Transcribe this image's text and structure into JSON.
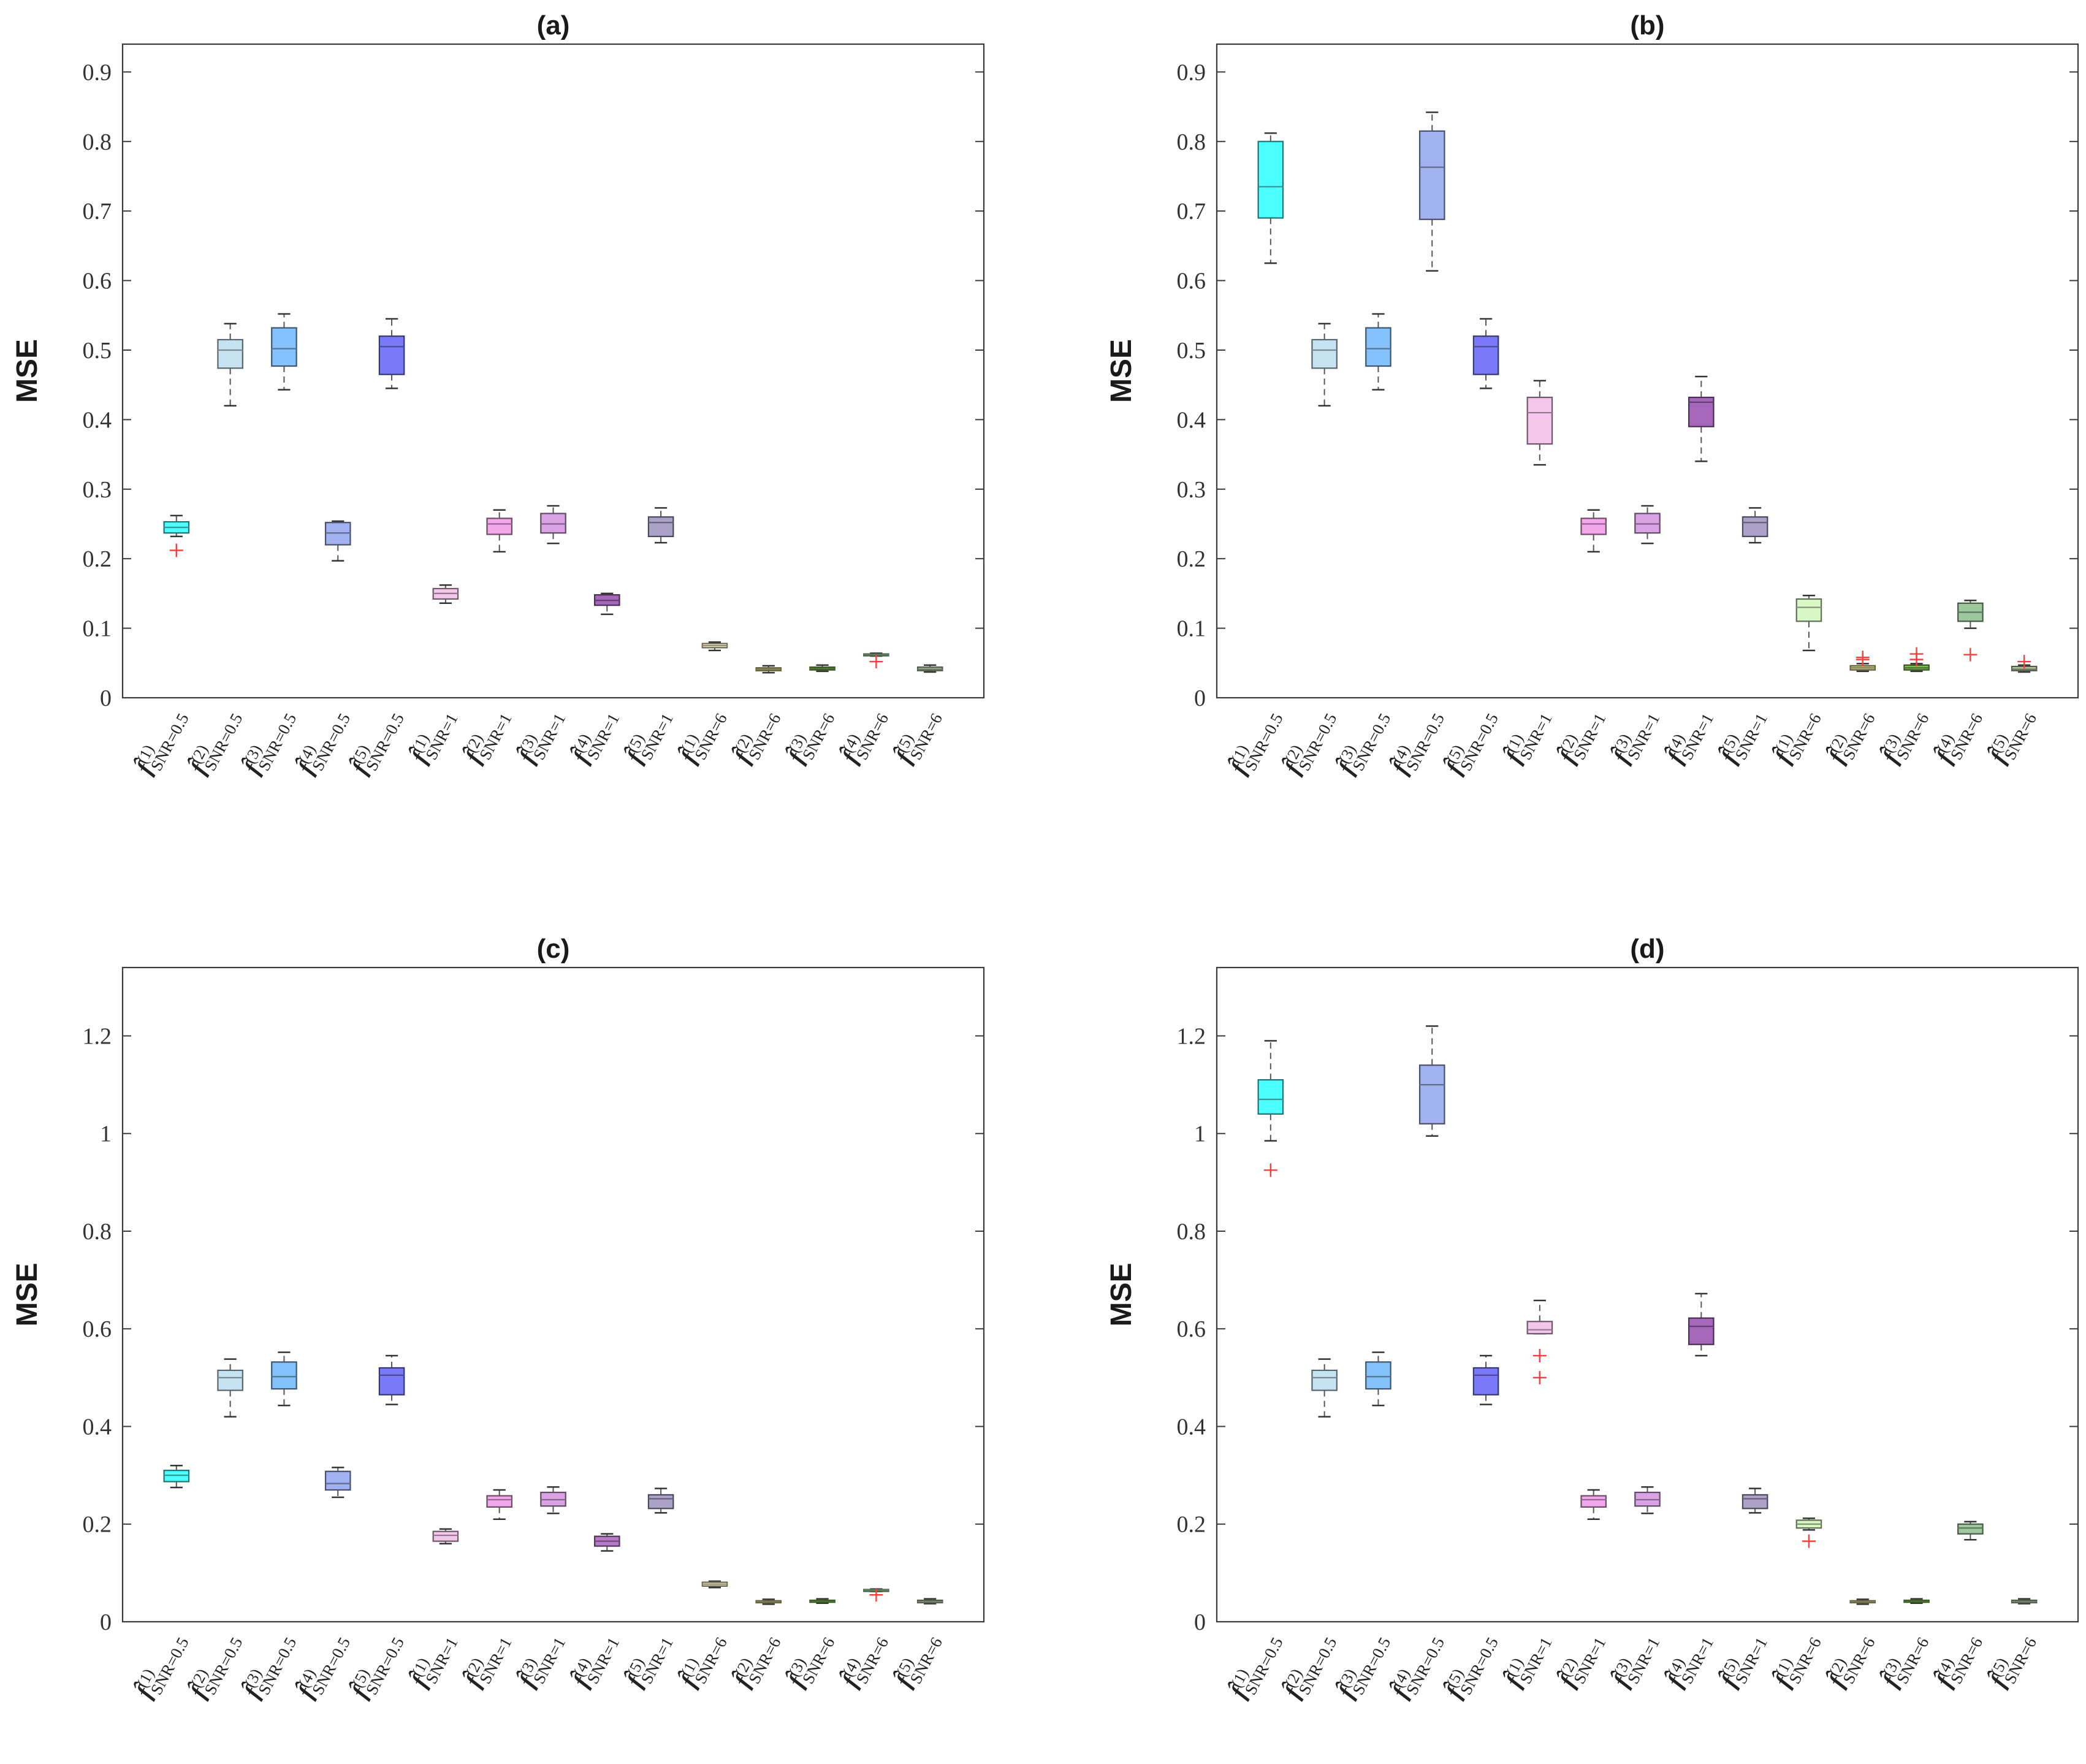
{
  "figure": {
    "domain": "boxplot-grid"
  },
  "chart_data": [
    {
      "type": "box",
      "title": "(a)",
      "ylabel": "MSE",
      "ylim": [
        0,
        0.94
      ],
      "yticks": [
        0,
        0.1,
        0.2,
        0.3,
        0.4,
        0.5,
        0.6,
        0.7,
        0.8,
        0.9
      ],
      "ytick_labels": [
        "0",
        "0.1",
        "0.2",
        "0.3",
        "0.4",
        "0.5",
        "0.6",
        "0.7",
        "0.8",
        "0.9"
      ],
      "grid": false,
      "categories": [
        {
          "est": "f̂",
          "idx": "(1)",
          "snr": "SNR=0.5"
        },
        {
          "est": "f̂",
          "idx": "(2)",
          "snr": "SNR=0.5"
        },
        {
          "est": "f̂",
          "idx": "(3)",
          "snr": "SNR=0.5"
        },
        {
          "est": "f̂",
          "idx": "(4)",
          "snr": "SNR=0.5"
        },
        {
          "est": "f̂",
          "idx": "(5)",
          "snr": "SNR=0.5"
        },
        {
          "est": "f̂",
          "idx": "(1)",
          "snr": "SNR=1"
        },
        {
          "est": "f̂",
          "idx": "(2)",
          "snr": "SNR=1"
        },
        {
          "est": "f̂",
          "idx": "(3)",
          "snr": "SNR=1"
        },
        {
          "est": "f̂",
          "idx": "(4)",
          "snr": "SNR=1"
        },
        {
          "est": "f̂",
          "idx": "(5)",
          "snr": "SNR=1"
        },
        {
          "est": "f̂",
          "idx": "(1)",
          "snr": "SNR=6"
        },
        {
          "est": "f̂",
          "idx": "(2)",
          "snr": "SNR=6"
        },
        {
          "est": "f̂",
          "idx": "(3)",
          "snr": "SNR=6"
        },
        {
          "est": "f̂",
          "idx": "(4)",
          "snr": "SNR=6"
        },
        {
          "est": "f̂",
          "idx": "(5)",
          "snr": "SNR=6"
        }
      ],
      "boxes": [
        {
          "min": 0.232,
          "q1": 0.237,
          "median": 0.245,
          "q3": 0.253,
          "max": 0.262,
          "outliers": [
            0.212
          ],
          "color": "#4dffff"
        },
        {
          "min": 0.42,
          "q1": 0.474,
          "median": 0.5,
          "q3": 0.515,
          "max": 0.538,
          "outliers": [],
          "color": "#c7e3f2"
        },
        {
          "min": 0.443,
          "q1": 0.477,
          "median": 0.502,
          "q3": 0.532,
          "max": 0.552,
          "outliers": [],
          "color": "#85c1fa"
        },
        {
          "min": 0.197,
          "q1": 0.22,
          "median": 0.237,
          "q3": 0.252,
          "max": 0.254,
          "outliers": [],
          "color": "#a2b2f0"
        },
        {
          "min": 0.445,
          "q1": 0.465,
          "median": 0.505,
          "q3": 0.52,
          "max": 0.545,
          "outliers": [],
          "color": "#7a7af8"
        },
        {
          "min": 0.136,
          "q1": 0.142,
          "median": 0.15,
          "q3": 0.157,
          "max": 0.162,
          "outliers": [],
          "color": "#f3c6ea"
        },
        {
          "min": 0.21,
          "q1": 0.235,
          "median": 0.25,
          "q3": 0.258,
          "max": 0.27,
          "outliers": [],
          "color": "#f3a8ec"
        },
        {
          "min": 0.222,
          "q1": 0.237,
          "median": 0.25,
          "q3": 0.265,
          "max": 0.276,
          "outliers": [],
          "color": "#d9a3e4"
        },
        {
          "min": 0.12,
          "q1": 0.133,
          "median": 0.14,
          "q3": 0.148,
          "max": 0.15,
          "outliers": [],
          "color": "#a467b9"
        },
        {
          "min": 0.223,
          "q1": 0.232,
          "median": 0.252,
          "q3": 0.26,
          "max": 0.273,
          "outliers": [],
          "color": "#aba2c8"
        },
        {
          "min": 0.068,
          "q1": 0.072,
          "median": 0.075,
          "q3": 0.078,
          "max": 0.08,
          "outliers": [],
          "color": "#f4ecc2"
        },
        {
          "min": 0.036,
          "q1": 0.039,
          "median": 0.041,
          "q3": 0.043,
          "max": 0.046,
          "outliers": [],
          "color": "#d4d38a"
        },
        {
          "min": 0.038,
          "q1": 0.04,
          "median": 0.042,
          "q3": 0.044,
          "max": 0.047,
          "outliers": [],
          "color": "#7fbf50"
        },
        {
          "min": 0.06,
          "q1": 0.061,
          "median": 0.062,
          "q3": 0.063,
          "max": 0.064,
          "outliers": [
            0.052
          ],
          "color": "#9ed79e"
        },
        {
          "min": 0.037,
          "q1": 0.039,
          "median": 0.041,
          "q3": 0.044,
          "max": 0.047,
          "outliers": [],
          "color": "#b9c8a7"
        }
      ]
    },
    {
      "type": "box",
      "title": "(b)",
      "ylabel": "MSE",
      "ylim": [
        0,
        0.94
      ],
      "yticks": [
        0,
        0.1,
        0.2,
        0.3,
        0.4,
        0.5,
        0.6,
        0.7,
        0.8,
        0.9
      ],
      "ytick_labels": [
        "0",
        "0.1",
        "0.2",
        "0.3",
        "0.4",
        "0.5",
        "0.6",
        "0.7",
        "0.8",
        "0.9"
      ],
      "grid": false,
      "categories": [
        {
          "est": "f̂",
          "idx": "(1)",
          "snr": "SNR=0.5"
        },
        {
          "est": "f̂",
          "idx": "(2)",
          "snr": "SNR=0.5"
        },
        {
          "est": "f̂",
          "idx": "(3)",
          "snr": "SNR=0.5"
        },
        {
          "est": "f̂",
          "idx": "(4)",
          "snr": "SNR=0.5"
        },
        {
          "est": "f̂",
          "idx": "(5)",
          "snr": "SNR=0.5"
        },
        {
          "est": "f̂",
          "idx": "(1)",
          "snr": "SNR=1"
        },
        {
          "est": "f̂",
          "idx": "(2)",
          "snr": "SNR=1"
        },
        {
          "est": "f̂",
          "idx": "(3)",
          "snr": "SNR=1"
        },
        {
          "est": "f̂",
          "idx": "(4)",
          "snr": "SNR=1"
        },
        {
          "est": "f̂",
          "idx": "(5)",
          "snr": "SNR=1"
        },
        {
          "est": "f̂",
          "idx": "(1)",
          "snr": "SNR=6"
        },
        {
          "est": "f̂",
          "idx": "(2)",
          "snr": "SNR=6"
        },
        {
          "est": "f̂",
          "idx": "(3)",
          "snr": "SNR=6"
        },
        {
          "est": "f̂",
          "idx": "(4)",
          "snr": "SNR=6"
        },
        {
          "est": "f̂",
          "idx": "(5)",
          "snr": "SNR=6"
        }
      ],
      "boxes": [
        {
          "min": 0.625,
          "q1": 0.69,
          "median": 0.735,
          "q3": 0.8,
          "max": 0.812,
          "outliers": [],
          "color": "#4dffff"
        },
        {
          "min": 0.42,
          "q1": 0.474,
          "median": 0.5,
          "q3": 0.515,
          "max": 0.538,
          "outliers": [],
          "color": "#c7e3f2"
        },
        {
          "min": 0.443,
          "q1": 0.477,
          "median": 0.502,
          "q3": 0.532,
          "max": 0.552,
          "outliers": [],
          "color": "#85c1fa"
        },
        {
          "min": 0.614,
          "q1": 0.688,
          "median": 0.763,
          "q3": 0.815,
          "max": 0.842,
          "outliers": [],
          "color": "#a2b2f0"
        },
        {
          "min": 0.445,
          "q1": 0.465,
          "median": 0.505,
          "q3": 0.52,
          "max": 0.545,
          "outliers": [],
          "color": "#7a7af8"
        },
        {
          "min": 0.335,
          "q1": 0.365,
          "median": 0.41,
          "q3": 0.432,
          "max": 0.456,
          "outliers": [],
          "color": "#f3c6ea"
        },
        {
          "min": 0.21,
          "q1": 0.235,
          "median": 0.25,
          "q3": 0.258,
          "max": 0.27,
          "outliers": [],
          "color": "#f3a8ec"
        },
        {
          "min": 0.222,
          "q1": 0.237,
          "median": 0.25,
          "q3": 0.265,
          "max": 0.276,
          "outliers": [],
          "color": "#d9a3e4"
        },
        {
          "min": 0.34,
          "q1": 0.39,
          "median": 0.425,
          "q3": 0.432,
          "max": 0.462,
          "outliers": [],
          "color": "#a467b9"
        },
        {
          "min": 0.223,
          "q1": 0.232,
          "median": 0.252,
          "q3": 0.26,
          "max": 0.273,
          "outliers": [],
          "color": "#aba2c8"
        },
        {
          "min": 0.068,
          "q1": 0.11,
          "median": 0.13,
          "q3": 0.142,
          "max": 0.147,
          "outliers": [],
          "color": "#d8f7c4"
        },
        {
          "min": 0.038,
          "q1": 0.04,
          "median": 0.043,
          "q3": 0.046,
          "max": 0.049,
          "outliers": [
            0.055,
            0.058
          ],
          "color": "#d4d38a"
        },
        {
          "min": 0.038,
          "q1": 0.04,
          "median": 0.043,
          "q3": 0.047,
          "max": 0.049,
          "outliers": [
            0.055,
            0.063
          ],
          "color": "#7fbf50"
        },
        {
          "min": 0.1,
          "q1": 0.11,
          "median": 0.123,
          "q3": 0.136,
          "max": 0.14,
          "outliers": [
            0.062
          ],
          "color": "#9ec99e"
        },
        {
          "min": 0.037,
          "q1": 0.039,
          "median": 0.041,
          "q3": 0.045,
          "max": 0.047,
          "outliers": [
            0.052
          ],
          "color": "#b9c8a7"
        }
      ]
    },
    {
      "type": "box",
      "title": "(c)",
      "ylabel": "MSE",
      "ylim": [
        0,
        1.34
      ],
      "yticks": [
        0,
        0.2,
        0.4,
        0.6,
        0.8,
        1,
        1.2
      ],
      "ytick_labels": [
        "0",
        "0.2",
        "0.4",
        "0.6",
        "0.8",
        "1",
        "1.2"
      ],
      "grid": false,
      "categories": [
        {
          "est": "f̂",
          "idx": "(1)",
          "snr": "SNR=0.5"
        },
        {
          "est": "f̂",
          "idx": "(2)",
          "snr": "SNR=0.5"
        },
        {
          "est": "f̂",
          "idx": "(3)",
          "snr": "SNR=0.5"
        },
        {
          "est": "f̂",
          "idx": "(4)",
          "snr": "SNR=0.5"
        },
        {
          "est": "f̂",
          "idx": "(5)",
          "snr": "SNR=0.5"
        },
        {
          "est": "f̂",
          "idx": "(1)",
          "snr": "SNR=1"
        },
        {
          "est": "f̂",
          "idx": "(2)",
          "snr": "SNR=1"
        },
        {
          "est": "f̂",
          "idx": "(3)",
          "snr": "SNR=1"
        },
        {
          "est": "f̂",
          "idx": "(4)",
          "snr": "SNR=1"
        },
        {
          "est": "f̂",
          "idx": "(5)",
          "snr": "SNR=1"
        },
        {
          "est": "f̂",
          "idx": "(1)",
          "snr": "SNR=6"
        },
        {
          "est": "f̂",
          "idx": "(2)",
          "snr": "SNR=6"
        },
        {
          "est": "f̂",
          "idx": "(3)",
          "snr": "SNR=6"
        },
        {
          "est": "f̂",
          "idx": "(4)",
          "snr": "SNR=6"
        },
        {
          "est": "f̂",
          "idx": "(5)",
          "snr": "SNR=6"
        }
      ],
      "boxes": [
        {
          "min": 0.275,
          "q1": 0.287,
          "median": 0.3,
          "q3": 0.31,
          "max": 0.32,
          "outliers": [],
          "color": "#4dffff"
        },
        {
          "min": 0.42,
          "q1": 0.474,
          "median": 0.5,
          "q3": 0.515,
          "max": 0.538,
          "outliers": [],
          "color": "#c7e3f2"
        },
        {
          "min": 0.443,
          "q1": 0.477,
          "median": 0.502,
          "q3": 0.532,
          "max": 0.552,
          "outliers": [],
          "color": "#85c1fa"
        },
        {
          "min": 0.255,
          "q1": 0.27,
          "median": 0.283,
          "q3": 0.308,
          "max": 0.316,
          "outliers": [],
          "color": "#a2b2f0"
        },
        {
          "min": 0.445,
          "q1": 0.465,
          "median": 0.505,
          "q3": 0.52,
          "max": 0.545,
          "outliers": [],
          "color": "#7a7af8"
        },
        {
          "min": 0.16,
          "q1": 0.165,
          "median": 0.177,
          "q3": 0.185,
          "max": 0.19,
          "outliers": [],
          "color": "#f3c6ea"
        },
        {
          "min": 0.21,
          "q1": 0.235,
          "median": 0.25,
          "q3": 0.258,
          "max": 0.27,
          "outliers": [],
          "color": "#f3a8ec"
        },
        {
          "min": 0.222,
          "q1": 0.237,
          "median": 0.25,
          "q3": 0.265,
          "max": 0.276,
          "outliers": [],
          "color": "#d9a3e4"
        },
        {
          "min": 0.145,
          "q1": 0.155,
          "median": 0.165,
          "q3": 0.175,
          "max": 0.18,
          "outliers": [],
          "color": "#b77ac9"
        },
        {
          "min": 0.223,
          "q1": 0.232,
          "median": 0.252,
          "q3": 0.26,
          "max": 0.273,
          "outliers": [],
          "color": "#aba2c8"
        },
        {
          "min": 0.07,
          "q1": 0.073,
          "median": 0.077,
          "q3": 0.081,
          "max": 0.083,
          "outliers": [],
          "color": "#f4ecc2"
        },
        {
          "min": 0.036,
          "q1": 0.039,
          "median": 0.041,
          "q3": 0.043,
          "max": 0.046,
          "outliers": [],
          "color": "#d4d38a"
        },
        {
          "min": 0.038,
          "q1": 0.04,
          "median": 0.042,
          "q3": 0.044,
          "max": 0.047,
          "outliers": [],
          "color": "#7fbf50"
        },
        {
          "min": 0.062,
          "q1": 0.063,
          "median": 0.065,
          "q3": 0.066,
          "max": 0.067,
          "outliers": [
            0.055
          ],
          "color": "#9ed79e"
        },
        {
          "min": 0.037,
          "q1": 0.039,
          "median": 0.041,
          "q3": 0.044,
          "max": 0.047,
          "outliers": [],
          "color": "#b9c8a7"
        }
      ]
    },
    {
      "type": "box",
      "title": "(d)",
      "ylabel": "MSE",
      "ylim": [
        0,
        1.34
      ],
      "yticks": [
        0,
        0.2,
        0.4,
        0.6,
        0.8,
        1,
        1.2
      ],
      "ytick_labels": [
        "0",
        "0.2",
        "0.4",
        "0.6",
        "0.8",
        "1",
        "1.2"
      ],
      "grid": false,
      "categories": [
        {
          "est": "f̂",
          "idx": "(1)",
          "snr": "SNR=0.5"
        },
        {
          "est": "f̂",
          "idx": "(2)",
          "snr": "SNR=0.5"
        },
        {
          "est": "f̂",
          "idx": "(3)",
          "snr": "SNR=0.5"
        },
        {
          "est": "f̂",
          "idx": "(4)",
          "snr": "SNR=0.5"
        },
        {
          "est": "f̂",
          "idx": "(5)",
          "snr": "SNR=0.5"
        },
        {
          "est": "f̂",
          "idx": "(1)",
          "snr": "SNR=1"
        },
        {
          "est": "f̂",
          "idx": "(2)",
          "snr": "SNR=1"
        },
        {
          "est": "f̂",
          "idx": "(3)",
          "snr": "SNR=1"
        },
        {
          "est": "f̂",
          "idx": "(4)",
          "snr": "SNR=1"
        },
        {
          "est": "f̂",
          "idx": "(5)",
          "snr": "SNR=1"
        },
        {
          "est": "f̂",
          "idx": "(1)",
          "snr": "SNR=6"
        },
        {
          "est": "f̂",
          "idx": "(2)",
          "snr": "SNR=6"
        },
        {
          "est": "f̂",
          "idx": "(3)",
          "snr": "SNR=6"
        },
        {
          "est": "f̂",
          "idx": "(4)",
          "snr": "SNR=6"
        },
        {
          "est": "f̂",
          "idx": "(5)",
          "snr": "SNR=6"
        }
      ],
      "boxes": [
        {
          "min": 0.985,
          "q1": 1.04,
          "median": 1.07,
          "q3": 1.11,
          "max": 1.19,
          "outliers": [
            0.925
          ],
          "color": "#4dffff"
        },
        {
          "min": 0.42,
          "q1": 0.474,
          "median": 0.5,
          "q3": 0.515,
          "max": 0.538,
          "outliers": [],
          "color": "#c7e3f2"
        },
        {
          "min": 0.443,
          "q1": 0.477,
          "median": 0.502,
          "q3": 0.532,
          "max": 0.552,
          "outliers": [],
          "color": "#85c1fa"
        },
        {
          "min": 0.995,
          "q1": 1.02,
          "median": 1.1,
          "q3": 1.14,
          "max": 1.22,
          "outliers": [],
          "color": "#a2b2f0"
        },
        {
          "min": 0.445,
          "q1": 0.465,
          "median": 0.505,
          "q3": 0.52,
          "max": 0.545,
          "outliers": [],
          "color": "#7a7af8"
        },
        {
          "min": 0.59,
          "q1": 0.59,
          "median": 0.598,
          "q3": 0.615,
          "max": 0.658,
          "outliers": [
            0.545,
            0.5
          ],
          "color": "#f3c6ea"
        },
        {
          "min": 0.21,
          "q1": 0.235,
          "median": 0.25,
          "q3": 0.258,
          "max": 0.27,
          "outliers": [],
          "color": "#f3a8ec"
        },
        {
          "min": 0.222,
          "q1": 0.237,
          "median": 0.25,
          "q3": 0.265,
          "max": 0.276,
          "outliers": [],
          "color": "#d9a3e4"
        },
        {
          "min": 0.545,
          "q1": 0.568,
          "median": 0.605,
          "q3": 0.622,
          "max": 0.672,
          "outliers": [],
          "color": "#a467b9"
        },
        {
          "min": 0.223,
          "q1": 0.232,
          "median": 0.252,
          "q3": 0.26,
          "max": 0.273,
          "outliers": [],
          "color": "#aba2c8"
        },
        {
          "min": 0.188,
          "q1": 0.192,
          "median": 0.2,
          "q3": 0.208,
          "max": 0.212,
          "outliers": [
            0.165
          ],
          "color": "#d8f7c4"
        },
        {
          "min": 0.036,
          "q1": 0.039,
          "median": 0.041,
          "q3": 0.043,
          "max": 0.046,
          "outliers": [],
          "color": "#d4d38a"
        },
        {
          "min": 0.038,
          "q1": 0.04,
          "median": 0.042,
          "q3": 0.044,
          "max": 0.047,
          "outliers": [],
          "color": "#7fbf50"
        },
        {
          "min": 0.168,
          "q1": 0.18,
          "median": 0.192,
          "q3": 0.2,
          "max": 0.205,
          "outliers": [],
          "color": "#9ec99e"
        },
        {
          "min": 0.037,
          "q1": 0.039,
          "median": 0.041,
          "q3": 0.044,
          "max": 0.047,
          "outliers": [],
          "color": "#b9c8a7"
        }
      ]
    }
  ]
}
